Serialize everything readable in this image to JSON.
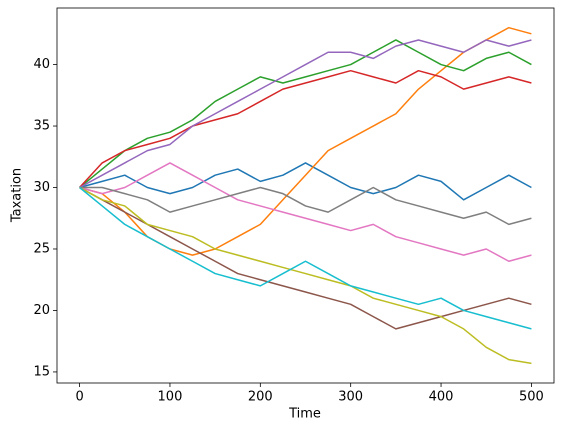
{
  "chart_data": {
    "type": "line",
    "x_label": "Time",
    "y_label": "Taxation",
    "x": [
      0,
      25,
      50,
      75,
      100,
      125,
      150,
      175,
      200,
      225,
      250,
      275,
      300,
      325,
      350,
      375,
      400,
      425,
      450,
      475,
      500
    ],
    "series": [
      {
        "color": "#1f77b4",
        "values": [
          30,
          30.5,
          31,
          30,
          29.5,
          30,
          31,
          31.5,
          30.5,
          31,
          32,
          31,
          30,
          29.5,
          30,
          31,
          30.5,
          29,
          30,
          31,
          30
        ]
      },
      {
        "color": "#ff7f0e",
        "values": [
          30,
          29.5,
          28,
          26,
          25,
          24.5,
          25,
          26,
          27,
          29,
          31,
          33,
          34,
          35,
          36,
          38,
          39.5,
          41,
          42,
          43,
          42.5
        ]
      },
      {
        "color": "#2ca02c",
        "values": [
          30,
          31.5,
          33,
          34,
          34.5,
          35.5,
          37,
          38,
          39,
          38.5,
          39,
          39.5,
          40,
          41,
          42,
          41,
          40,
          39.5,
          40.5,
          41,
          40
        ]
      },
      {
        "color": "#d62728",
        "values": [
          30,
          32,
          33,
          33.5,
          34,
          35,
          35.5,
          36,
          37,
          38,
          38.5,
          39,
          39.5,
          39,
          38.5,
          39.5,
          39,
          38,
          38.5,
          39,
          38.5
        ]
      },
      {
        "color": "#9467bd",
        "values": [
          30,
          31,
          32,
          33,
          33.5,
          35,
          36,
          37,
          38,
          39,
          40,
          41,
          41,
          40.5,
          41.5,
          42,
          41.5,
          41,
          42,
          41.5,
          42
        ]
      },
      {
        "color": "#8c564b",
        "values": [
          30,
          29,
          28,
          27,
          26,
          25,
          24,
          23,
          22.5,
          22,
          21.5,
          21,
          20.5,
          19.5,
          18.5,
          19,
          19.5,
          20,
          20.5,
          21,
          20.5
        ]
      },
      {
        "color": "#e377c2",
        "values": [
          30,
          29.5,
          30,
          31,
          32,
          31,
          30,
          29,
          28.5,
          28,
          27.5,
          27,
          26.5,
          27,
          26,
          25.5,
          25,
          24.5,
          25,
          24,
          24.5
        ]
      },
      {
        "color": "#7f7f7f",
        "values": [
          30,
          30,
          29.5,
          29,
          28,
          28.5,
          29,
          29.5,
          30,
          29.5,
          28.5,
          28,
          29,
          30,
          29,
          28.5,
          28,
          27.5,
          28,
          27,
          27.5
        ]
      },
      {
        "color": "#bcbd22",
        "values": [
          30,
          29,
          28.5,
          27,
          26.5,
          26,
          25,
          24.5,
          24,
          23.5,
          23,
          22.5,
          22,
          21,
          20.5,
          20,
          19.5,
          18.5,
          17,
          16,
          15.7
        ]
      },
      {
        "color": "#17becf",
        "values": [
          30,
          28.5,
          27,
          26,
          25,
          24,
          23,
          22.5,
          22,
          23,
          24,
          23,
          22,
          21.5,
          21,
          20.5,
          21,
          20,
          19.5,
          19,
          18.5
        ]
      }
    ],
    "xlim": [
      -25,
      525
    ],
    "ylim": [
      14.1,
      44.6
    ],
    "xticks": [
      0,
      100,
      200,
      300,
      400,
      500
    ],
    "yticks": [
      15,
      20,
      25,
      30,
      35,
      40
    ]
  }
}
